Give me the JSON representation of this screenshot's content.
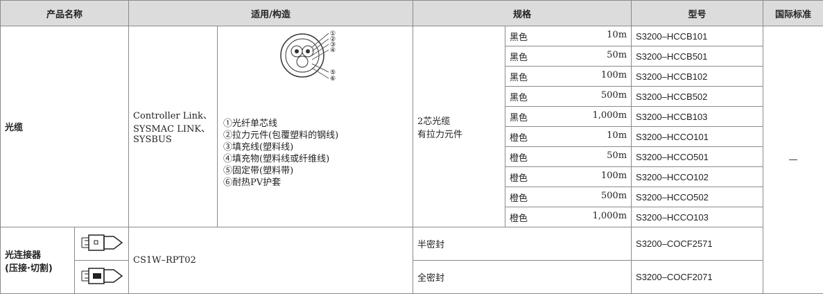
{
  "header": {
    "columns": [
      "产品名称",
      "适用/构造",
      "规格",
      "型号",
      "国际标准"
    ]
  },
  "cable": {
    "name": "光缆",
    "application": [
      "Controller Link、",
      "SYSMAC LINK、",
      "SYSBUS"
    ],
    "diagram_labels": [
      "①",
      "②",
      "③",
      "④",
      "⑤",
      "⑥"
    ],
    "structure_items": [
      "①光纤单芯线",
      "②拉力元件(包覆塑料的钢线)",
      "③填充线(塑料线)",
      "④填充物(塑料线或纤维线)",
      "⑤固定带(塑料带)",
      "⑥耐热PV护套"
    ],
    "spec": [
      "2芯光缆",
      "有拉力元件"
    ],
    "variants": [
      {
        "color": "黑色",
        "length": "10m",
        "model": "S3200–HCCB101"
      },
      {
        "color": "黑色",
        "length": "50m",
        "model": "S3200–HCCB501"
      },
      {
        "color": "黑色",
        "length": "100m",
        "model": "S3200–HCCB102"
      },
      {
        "color": "黑色",
        "length": "500m",
        "model": "S3200–HCCB502"
      },
      {
        "color": "黑色",
        "length": "1,000m",
        "model": "S3200–HCCB103"
      },
      {
        "color": "橙色",
        "length": "10m",
        "model": "S3200–HCCO101"
      },
      {
        "color": "橙色",
        "length": "50m",
        "model": "S3200–HCCO501"
      },
      {
        "color": "橙色",
        "length": "100m",
        "model": "S3200–HCCO102"
      },
      {
        "color": "橙色",
        "length": "500m",
        "model": "S3200–HCCO502"
      },
      {
        "color": "橙色",
        "length": "1,000m",
        "model": "S3200–HCCO103"
      }
    ],
    "standard": "—"
  },
  "connector": {
    "name": [
      "光连接器",
      "(压接·切割)"
    ],
    "application": "CS1W–RPT02",
    "variants": [
      {
        "spec": "半密封",
        "model": "S3200–COCF2571"
      },
      {
        "spec": "全密封",
        "model": "S3200–COCF2071"
      }
    ]
  }
}
